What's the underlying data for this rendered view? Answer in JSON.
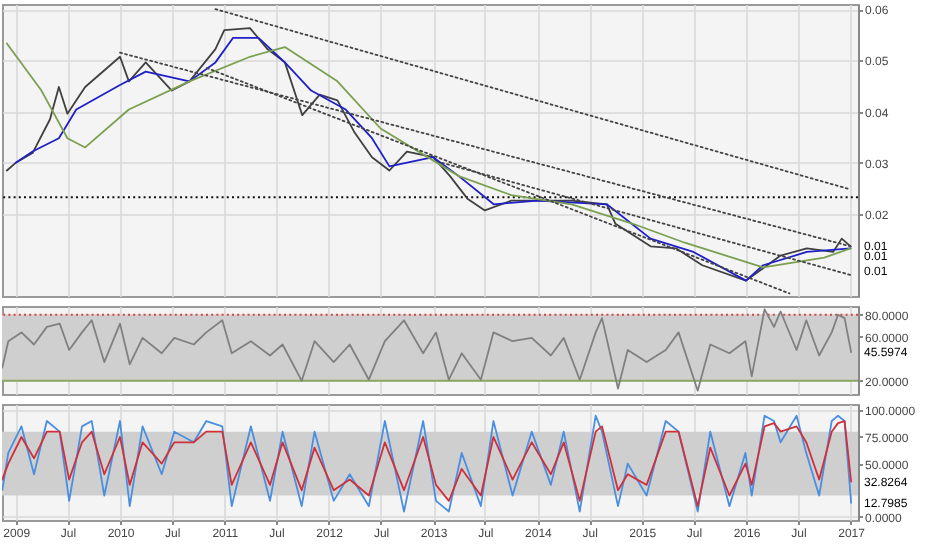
{
  "chart_data": [
    {
      "type": "line",
      "xlim": [
        "2008-11-14",
        "2017-01-27"
      ],
      "ylim": [
        0.004,
        0.061
      ],
      "yticks": [
        0.02,
        0.03,
        0.04,
        0.05,
        0.06
      ],
      "xticks": [
        {
          "value": "2009-01-01",
          "label": null
        },
        {
          "value": "2009-07-01",
          "label": null
        },
        {
          "value": "2010-01-01",
          "label": null
        },
        {
          "value": "2010-07-01",
          "label": null
        },
        {
          "value": "2011-01-01",
          "label": null
        },
        {
          "value": "2011-07-01",
          "label": null
        },
        {
          "value": "2012-01-01",
          "label": null
        },
        {
          "value": "2012-07-01",
          "label": null
        },
        {
          "value": "2013-01-01",
          "label": null
        },
        {
          "value": "2013-07-01",
          "label": null
        },
        {
          "value": "2014-01-01",
          "label": null
        },
        {
          "value": "2014-07-01",
          "label": null
        },
        {
          "value": "2015-01-01",
          "label": null
        },
        {
          "value": "2015-07-01",
          "label": null
        },
        {
          "value": "2016-01-01",
          "label": null
        },
        {
          "value": "2016-07-01",
          "label": null
        },
        {
          "value": "2017-01-01",
          "label": null
        }
      ],
      "tick_labels": "y",
      "grid": true,
      "series": [
        {
          "color": "#404040",
          "line_style": "solid",
          "x": [
            "2008-12",
            "2009-01",
            "2009-03",
            "2009-05",
            "2009-06",
            "2009-07",
            "2009-09",
            "2010-01",
            "2010-02",
            "2010-04",
            "2010-07",
            "2010-09",
            "2010-12",
            "2011-01",
            "2011-04",
            "2011-06",
            "2011-08",
            "2011-10",
            "2011-12",
            "2012-02",
            "2012-04",
            "2012-06",
            "2012-08",
            "2012-10",
            "2013-01",
            "2013-03",
            "2013-05",
            "2013-07",
            "2013-10",
            "2014-05",
            "2014-09",
            "2014-10",
            "2015-02",
            "2015-05",
            "2015-08",
            "2016-01",
            "2016-05",
            "2016-08",
            "2016-11",
            "2016-12",
            "2017-01"
          ],
          "values": [
            0.0285,
            0.03,
            0.0319,
            0.0385,
            0.0448,
            0.0396,
            0.0448,
            0.0507,
            0.0459,
            0.0496,
            0.0441,
            0.0459,
            0.0522,
            0.0559,
            0.0563,
            0.0522,
            0.0496,
            0.0393,
            0.0433,
            0.0422,
            0.0359,
            0.0311,
            0.0285,
            0.0322,
            0.0311,
            0.0274,
            0.023,
            0.0207,
            0.0226,
            0.0226,
            0.0219,
            0.0181,
            0.0137,
            0.0133,
            0.01,
            0.007,
            0.0119,
            0.0133,
            0.0126,
            0.0152,
            0.0137
          ]
        },
        {
          "color": "#2020c8",
          "line_style": "solid",
          "x": [
            "2009-01",
            "2009-03",
            "2009-06",
            "2009-08",
            "2010-01",
            "2010-04",
            "2010-09",
            "2010-12",
            "2011-02",
            "2011-05",
            "2011-08",
            "2011-11",
            "2012-03",
            "2012-06",
            "2012-08",
            "2013-01",
            "2013-04",
            "2013-08",
            "2014-01",
            "2014-09",
            "2015-02",
            "2015-07",
            "2016-01",
            "2016-03",
            "2016-08",
            "2017-01"
          ],
          "values": [
            0.03,
            0.0322,
            0.0348,
            0.0404,
            0.0452,
            0.0478,
            0.0459,
            0.0496,
            0.0544,
            0.0544,
            0.0496,
            0.0441,
            0.0404,
            0.0348,
            0.0293,
            0.0311,
            0.0274,
            0.0219,
            0.0226,
            0.0219,
            0.0152,
            0.0126,
            0.007,
            0.01,
            0.0126,
            0.0133
          ]
        },
        {
          "color": "#7aa050",
          "line_style": "solid",
          "x": [
            "2008-12",
            "2009-04",
            "2009-07",
            "2009-09",
            "2010-02",
            "2010-09",
            "2011-04",
            "2011-08",
            "2012-02",
            "2012-07",
            "2013-04",
            "2013-10",
            "2014-05",
            "2014-12",
            "2015-06",
            "2016-03",
            "2016-10",
            "2017-01"
          ],
          "values": [
            0.0533,
            0.0441,
            0.0348,
            0.033,
            0.0404,
            0.0459,
            0.0507,
            0.0526,
            0.0459,
            0.0367,
            0.0274,
            0.0237,
            0.0219,
            0.0181,
            0.0144,
            0.0096,
            0.0115,
            0.0133
          ]
        },
        {
          "color": "#444444",
          "line_style": "dotted",
          "x": [
            "2010-12",
            "2017-01"
          ],
          "values": [
            0.06,
            0.0248
          ]
        },
        {
          "color": "#444444",
          "line_style": "dotted",
          "x": [
            "2010-01",
            "2017-01"
          ],
          "values": [
            0.0515,
            0.0137
          ]
        },
        {
          "color": "#444444",
          "line_style": "dotted",
          "x": [
            "2010-11",
            "2016-06"
          ],
          "values": [
            0.0485,
            0.0045
          ]
        },
        {
          "color": "#444444",
          "line_style": "dotted",
          "x": [
            "2013-02",
            "2017-01"
          ],
          "values": [
            0.03,
            0.0081
          ]
        }
      ],
      "ref_lines": [
        {
          "axis": "y",
          "value": 0.0233,
          "color": "#111111",
          "line_style": "dotted"
        }
      ],
      "annotations": [
        {
          "text": "0.01",
          "x": "2017-01-27",
          "y": 0.0137
        },
        "0.01",
        {
          "text": "0.01",
          "x": "2017-01-27",
          "y": 0.0089
        }
      ]
    },
    {
      "type": "line",
      "xlim": [
        "2008-11-14",
        "2017-01-27"
      ],
      "ylim": [
        8,
        88
      ],
      "yticks": [
        {
          "value": 20,
          "label": "20.0000"
        },
        {
          "value": 60,
          "label": "60.0000"
        },
        {
          "value": 80,
          "label": "80.0000"
        }
      ],
      "xticks": [
        {
          "value": "2009-01-01",
          "label": null
        },
        {
          "value": "2009-07-01",
          "label": null
        },
        {
          "value": "2010-01-01",
          "label": null
        },
        {
          "value": "2010-07-01",
          "label": null
        },
        {
          "value": "2011-01-01",
          "label": null
        },
        {
          "value": "2011-07-01",
          "label": null
        },
        {
          "value": "2012-01-01",
          "label": null
        },
        {
          "value": "2012-07-01",
          "label": null
        },
        {
          "value": "2013-01-01",
          "label": null
        },
        {
          "value": "2013-07-01",
          "label": null
        },
        {
          "value": "2014-01-01",
          "label": null
        },
        {
          "value": "2014-07-01",
          "label": null
        },
        {
          "value": "2015-01-01",
          "label": null
        },
        {
          "value": "2015-07-01",
          "label": null
        },
        {
          "value": "2016-01-01",
          "label": null
        },
        {
          "value": "2016-07-01",
          "label": null
        },
        {
          "value": "2017-01-01",
          "label": null
        }
      ],
      "tick_labels": "y",
      "grid": true,
      "x": [
        "2008-11-15",
        "2008-12-06",
        "2009-01-21",
        "2009-03-06",
        "2009-04-20",
        "2009-06-04",
        "2009-07-07",
        "2009-08-21",
        "2009-09-24",
        "2009-11-07",
        "2010-01-01",
        "2010-02-04",
        "2010-03-21",
        "2010-05-27",
        "2010-07-10",
        "2010-09-16",
        "2010-10-30",
        "2010-12-25",
        "2011-01-27",
        "2011-04-04",
        "2011-06-10",
        "2011-07-24",
        "2011-09-29",
        "2011-11-13",
        "2012-01-19",
        "2012-03-15",
        "2012-05-21",
        "2012-07-16",
        "2012-09-21",
        "2012-11-27",
        "2013-01-11",
        "2013-02-25",
        "2013-04-11",
        "2013-06-17",
        "2013-07-31",
        "2013-10-06",
        "2013-12-12",
        "2014-02-17",
        "2014-04-03",
        "2014-05-29",
        "2014-07-24",
        "2014-08-15",
        "2014-10-10",
        "2014-11-13",
        "2015-01-18",
        "2015-03-26",
        "2015-05-10",
        "2015-07-16",
        "2015-08-29",
        "2015-11-04",
        "2015-12-30",
        "2016-01-21",
        "2016-03-06",
        "2016-04-08",
        "2016-05-01",
        "2016-06-26",
        "2016-07-30",
        "2016-09-13",
        "2016-10-27",
        "2016-11-18",
        "2016-12-11",
        "2017-01-03"
      ],
      "series": [
        {
          "color": "#808080",
          "line_style": "solid",
          "values": [
            32,
            56,
            64,
            53,
            69,
            72,
            48,
            64,
            75,
            37,
            72,
            35,
            59,
            45,
            59,
            53,
            64,
            75,
            45,
            56,
            43,
            53,
            20,
            56,
            37,
            53,
            21,
            56,
            75,
            45,
            64,
            21,
            45,
            21,
            64,
            56,
            59,
            43,
            59,
            21,
            64,
            77,
            13,
            48,
            37,
            48,
            64,
            11,
            53,
            45,
            56,
            24,
            85,
            69,
            83,
            48,
            75,
            43,
            64,
            80,
            77,
            46
          ]
        }
      ],
      "bands": [
        {
          "axis": "y",
          "from": 20,
          "to": 80,
          "color": "#cfcfcf"
        }
      ],
      "ref_lines": [
        {
          "axis": "y",
          "value": 80,
          "color": "#d04848",
          "line_style": "dotted"
        },
        {
          "axis": "y",
          "value": 20,
          "color": "#8aa860",
          "line_style": "solid"
        }
      ],
      "annotations": [
        {
          "text": "45.5974",
          "x": "2017-01-27",
          "y": 46
        }
      ]
    },
    {
      "type": "line",
      "xlim": [
        "2008-11-14",
        "2017-01-27"
      ],
      "ylim": [
        -3,
        106
      ],
      "yticks": [
        {
          "value": 0,
          "label": "0.0000"
        },
        {
          "value": 50,
          "label": "50.0000"
        },
        {
          "value": 75,
          "label": "75.0000"
        },
        {
          "value": 100,
          "label": "100.0000"
        }
      ],
      "xticks": [
        {
          "value": "2009-01-01",
          "label": "2009"
        },
        {
          "value": "2009-07-01",
          "label": "Jul"
        },
        {
          "value": "2010-01-01",
          "label": "2010"
        },
        {
          "value": "2010-07-01",
          "label": "Jul"
        },
        {
          "value": "2011-01-01",
          "label": "2011"
        },
        {
          "value": "2011-07-01",
          "label": "Jul"
        },
        {
          "value": "2012-01-01",
          "label": "2012"
        },
        {
          "value": "2012-07-01",
          "label": "Jul"
        },
        {
          "value": "2013-01-01",
          "label": "2013"
        },
        {
          "value": "2013-07-01",
          "label": "Jul"
        },
        {
          "value": "2014-01-01",
          "label": "2014"
        },
        {
          "value": "2014-07-01",
          "label": "Jul"
        },
        {
          "value": "2015-01-01",
          "label": "2015"
        },
        {
          "value": "2015-07-01",
          "label": "Jul"
        },
        {
          "value": "2016-01-01",
          "label": "2016"
        },
        {
          "value": "2016-07-01",
          "label": "Jul"
        },
        {
          "value": "2017-01-01",
          "label": "2017"
        }
      ],
      "grid": true,
      "x": [
        "2008-11-15",
        "2008-12-06",
        "2009-01-21",
        "2009-03-06",
        "2009-04-20",
        "2009-06-04",
        "2009-07-07",
        "2009-08-21",
        "2009-09-24",
        "2009-11-07",
        "2010-01-01",
        "2010-02-04",
        "2010-03-21",
        "2010-05-27",
        "2010-07-10",
        "2010-09-16",
        "2010-10-30",
        "2010-12-25",
        "2011-01-27",
        "2011-04-04",
        "2011-06-10",
        "2011-07-24",
        "2011-09-29",
        "2011-11-13",
        "2012-01-19",
        "2012-03-15",
        "2012-05-21",
        "2012-07-16",
        "2012-09-21",
        "2012-11-27",
        "2013-01-11",
        "2013-02-25",
        "2013-04-11",
        "2013-06-17",
        "2013-07-31",
        "2013-10-06",
        "2013-12-12",
        "2014-02-17",
        "2014-04-03",
        "2014-05-29",
        "2014-07-24",
        "2014-08-15",
        "2014-10-10",
        "2014-11-13",
        "2015-01-18",
        "2015-03-26",
        "2015-05-10",
        "2015-07-16",
        "2015-08-29",
        "2015-11-04",
        "2015-12-30",
        "2016-01-21",
        "2016-03-06",
        "2016-04-08",
        "2016-05-01",
        "2016-06-26",
        "2016-07-30",
        "2016-09-13",
        "2016-10-27",
        "2016-11-18",
        "2016-12-11",
        "2017-01-03"
      ],
      "series": [
        {
          "color": "#4a8ee0",
          "line_style": "solid",
          "values": [
            25,
            60,
            85,
            40,
            90,
            80,
            15,
            85,
            90,
            20,
            90,
            10,
            85,
            40,
            80,
            70,
            90,
            85,
            10,
            85,
            15,
            80,
            10,
            80,
            15,
            40,
            10,
            90,
            5,
            90,
            15,
            5,
            60,
            10,
            90,
            20,
            80,
            30,
            80,
            5,
            95,
            80,
            10,
            50,
            20,
            90,
            80,
            5,
            80,
            10,
            60,
            20,
            95,
            90,
            70,
            95,
            60,
            20,
            90,
            95,
            90,
            13
          ]
        },
        {
          "color": "#d0303a",
          "line_style": "solid",
          "values": [
            35,
            50,
            75,
            55,
            80,
            80,
            35,
            70,
            80,
            40,
            75,
            30,
            70,
            50,
            70,
            70,
            80,
            80,
            30,
            70,
            30,
            70,
            25,
            65,
            25,
            35,
            20,
            70,
            25,
            75,
            30,
            15,
            45,
            20,
            75,
            35,
            70,
            40,
            70,
            15,
            80,
            85,
            25,
            40,
            30,
            80,
            80,
            10,
            65,
            20,
            50,
            30,
            85,
            88,
            80,
            85,
            70,
            35,
            80,
            88,
            90,
            33
          ]
        }
      ],
      "bands": [
        {
          "axis": "y",
          "from": 20,
          "to": 80,
          "color": "#cfcfcf"
        }
      ],
      "annotations": [
        {
          "text": "32.8264",
          "x": "2017-01-27",
          "y": 33
        },
        {
          "text": "12.7985",
          "x": "2017-01-27",
          "y": 13
        }
      ]
    }
  ]
}
